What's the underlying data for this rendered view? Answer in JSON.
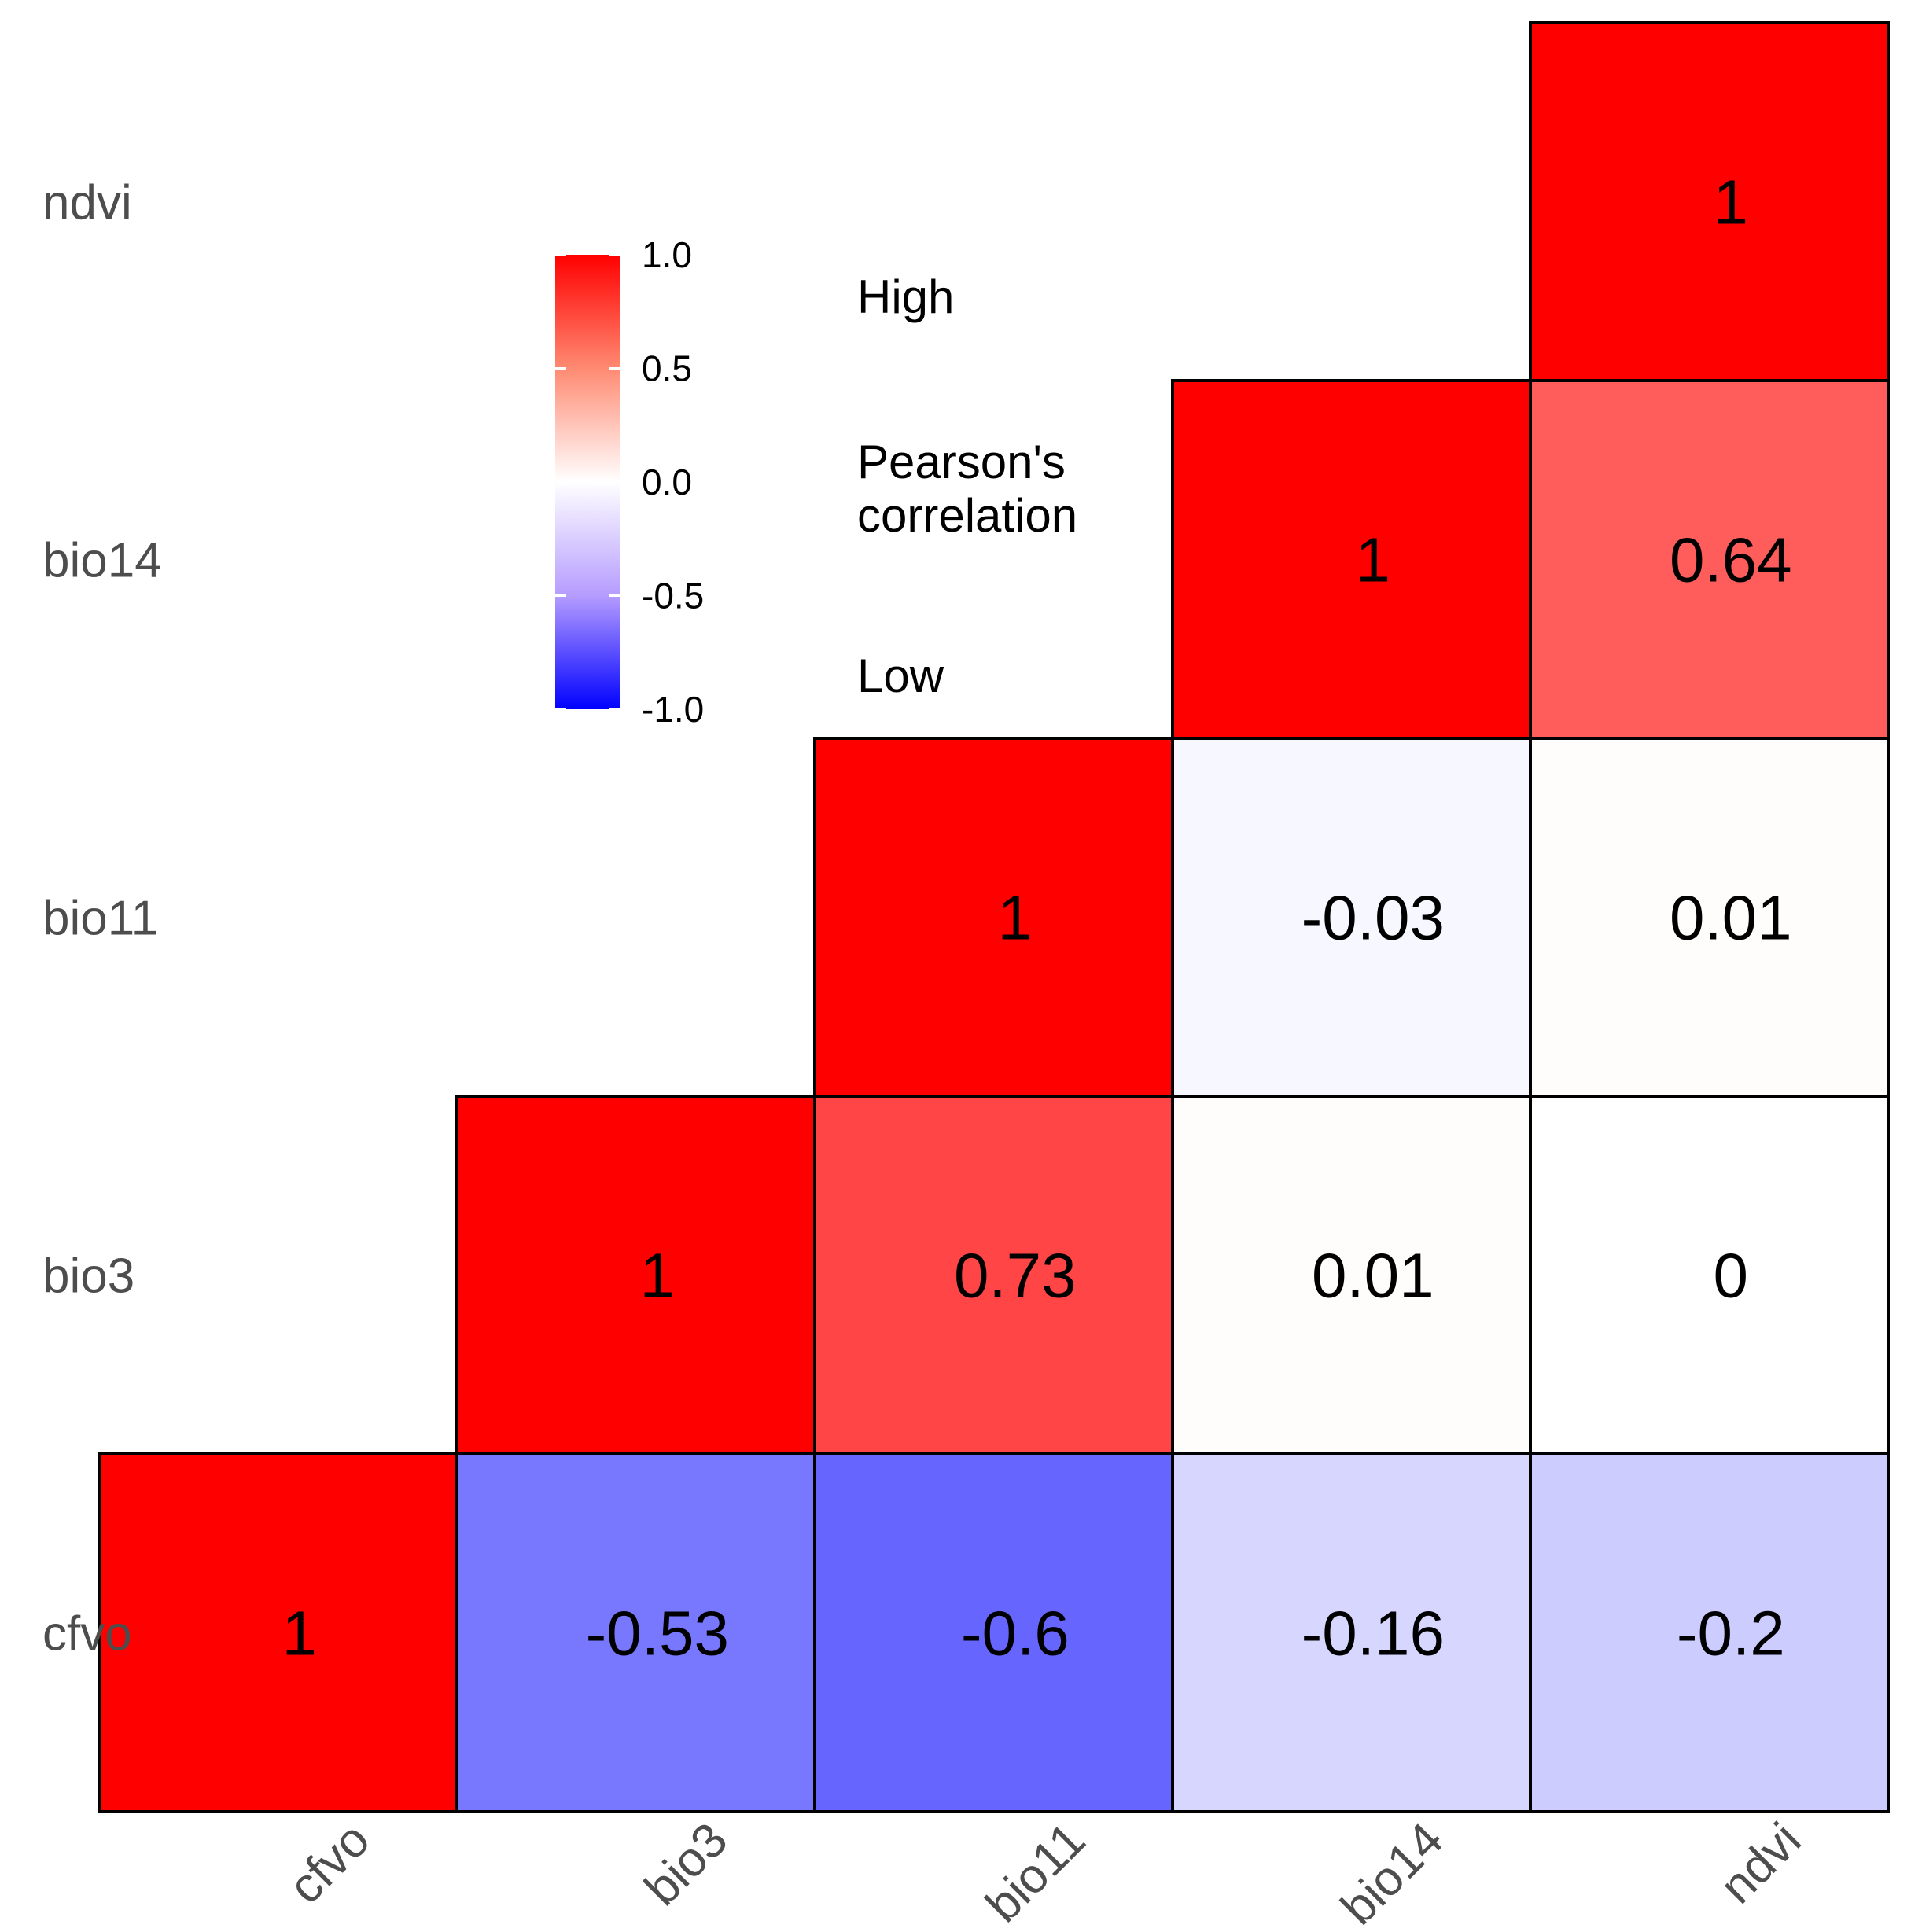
{
  "chart_data": {
    "type": "heatmap",
    "title": "",
    "variables": [
      "cfvo",
      "bio3",
      "bio11",
      "bio14",
      "ndvi"
    ],
    "cells": [
      {
        "row": "cfvo",
        "col": "cfvo",
        "value": 1,
        "label": "1"
      },
      {
        "row": "cfvo",
        "col": "bio3",
        "value": -0.53,
        "label": "-0.53"
      },
      {
        "row": "cfvo",
        "col": "bio11",
        "value": -0.6,
        "label": "-0.6"
      },
      {
        "row": "cfvo",
        "col": "bio14",
        "value": -0.16,
        "label": "-0.16"
      },
      {
        "row": "cfvo",
        "col": "ndvi",
        "value": -0.2,
        "label": "-0.2"
      },
      {
        "row": "bio3",
        "col": "bio3",
        "value": 1,
        "label": "1"
      },
      {
        "row": "bio3",
        "col": "bio11",
        "value": 0.73,
        "label": "0.73"
      },
      {
        "row": "bio3",
        "col": "bio14",
        "value": 0.01,
        "label": "0.01"
      },
      {
        "row": "bio3",
        "col": "ndvi",
        "value": 0,
        "label": "0"
      },
      {
        "row": "bio11",
        "col": "bio11",
        "value": 1,
        "label": "1"
      },
      {
        "row": "bio11",
        "col": "bio14",
        "value": -0.03,
        "label": "-0.03"
      },
      {
        "row": "bio11",
        "col": "ndvi",
        "value": 0.01,
        "label": "0.01"
      },
      {
        "row": "bio14",
        "col": "bio14",
        "value": 1,
        "label": "1"
      },
      {
        "row": "bio14",
        "col": "ndvi",
        "value": 0.64,
        "label": "0.64"
      },
      {
        "row": "ndvi",
        "col": "ndvi",
        "value": 1,
        "label": "1"
      }
    ],
    "color_scale": {
      "low": "#0000ff",
      "mid": "#ffffff",
      "high": "#ff0000",
      "range": [
        -1,
        1
      ]
    },
    "legend": {
      "title_lines": [
        "Pearson's",
        "correlation"
      ],
      "high_label": "High",
      "low_label": "Low",
      "ticks": [
        {
          "value": 1.0,
          "label": "1.0"
        },
        {
          "value": 0.5,
          "label": "0.5"
        },
        {
          "value": 0.0,
          "label": "0.0"
        },
        {
          "value": -0.5,
          "label": "-0.5"
        },
        {
          "value": -1.0,
          "label": "-1.0"
        }
      ],
      "placement": "top-left"
    }
  }
}
